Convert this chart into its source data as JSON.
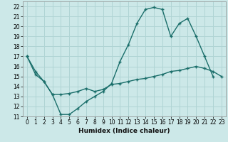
{
  "title": "",
  "xlabel": "Humidex (Indice chaleur)",
  "background_color": "#cce8e8",
  "grid_color": "#b0d4d4",
  "line_color": "#1a6e6a",
  "xlim": [
    -0.5,
    23.5
  ],
  "ylim": [
    11,
    22.5
  ],
  "yticks": [
    11,
    12,
    13,
    14,
    15,
    16,
    17,
    18,
    19,
    20,
    21,
    22
  ],
  "xticks": [
    0,
    1,
    2,
    3,
    4,
    5,
    6,
    7,
    8,
    9,
    10,
    11,
    12,
    13,
    14,
    15,
    16,
    17,
    18,
    19,
    20,
    21,
    22,
    23
  ],
  "line1_x": [
    0,
    1,
    2,
    3,
    4,
    5,
    6,
    7,
    8,
    9,
    10,
    11,
    12,
    13,
    14,
    15,
    16,
    17,
    18,
    19,
    20,
    21,
    22,
    23
  ],
  "line1_y": [
    17.0,
    15.5,
    14.5,
    13.2,
    11.2,
    11.2,
    11.8,
    12.5,
    13.0,
    13.5,
    14.3,
    16.5,
    18.2,
    20.3,
    21.7,
    21.9,
    21.7,
    19.0,
    20.3,
    20.8,
    19.0,
    17.0,
    15.0,
    null
  ],
  "line2_x": [
    0,
    1,
    2,
    3,
    4,
    5,
    6,
    7,
    8,
    9,
    10,
    11,
    12,
    13,
    14,
    15,
    16,
    17,
    18,
    19,
    20,
    21,
    22,
    23
  ],
  "line2_y": [
    17.0,
    15.2,
    14.5,
    13.2,
    13.2,
    13.3,
    13.5,
    13.8,
    13.5,
    13.7,
    14.2,
    14.3,
    14.5,
    14.7,
    14.8,
    15.0,
    15.2,
    15.5,
    15.6,
    15.8,
    16.0,
    15.8,
    15.5,
    15.0
  ]
}
